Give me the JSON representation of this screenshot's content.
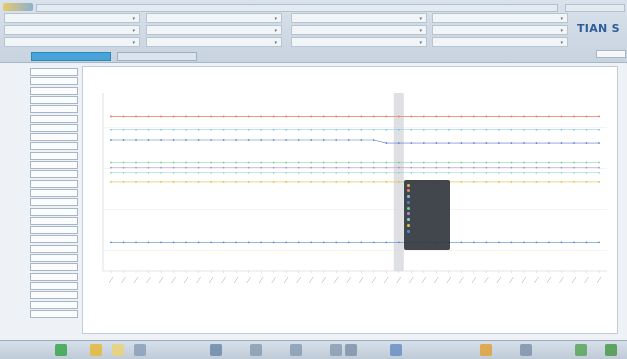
{
  "brand": "TIAN S",
  "tabs": [
    {
      "label": "",
      "active": true
    },
    {
      "label": "",
      "active": false
    }
  ],
  "top_groups": [
    {
      "cells": [
        "",
        "",
        ""
      ]
    },
    {
      "cells": [
        "",
        "",
        ""
      ]
    },
    {
      "cells": [
        "",
        "",
        ""
      ]
    },
    {
      "cells": [
        "",
        "",
        ""
      ]
    }
  ],
  "sidebar": {
    "items": [
      "",
      "",
      "",
      "",
      "",
      "",
      "",
      "",
      "",
      "",
      "",
      "",
      "",
      "",
      "",
      "",
      "",
      "",
      "",
      "",
      "",
      "",
      "",
      "",
      "",
      "",
      ""
    ]
  },
  "panel_title": "",
  "bottom": {
    "title": "",
    "info_left": "",
    "info_right": ""
  },
  "chart_data": {
    "type": "line",
    "title": "",
    "xlabel": "",
    "ylabel": "",
    "x_count": 40,
    "highlight_index": 23,
    "series": [
      {
        "color": "#e8b84a",
        "values": [
          5.55,
          5.55,
          5.55,
          5.55,
          5.55,
          5.55,
          5.55,
          5.55,
          5.55,
          5.55,
          5.55,
          5.55,
          5.55,
          5.55,
          5.55,
          5.55,
          5.55,
          5.55,
          5.55,
          5.55,
          5.55,
          5.55,
          5.55,
          5.55,
          5.55,
          5.55,
          5.55,
          5.55,
          5.55,
          5.55,
          5.55,
          5.55,
          5.55,
          5.55,
          5.55,
          5.55,
          5.55,
          5.55,
          5.55,
          5.55
        ]
      },
      {
        "color": "#f07b7b",
        "values": [
          5.55,
          5.55,
          5.55,
          5.55,
          5.55,
          5.55,
          5.55,
          5.55,
          5.55,
          5.55,
          5.55,
          5.55,
          5.55,
          5.55,
          5.55,
          5.55,
          5.55,
          5.55,
          5.55,
          5.55,
          5.55,
          5.55,
          5.55,
          5.55,
          5.55,
          5.55,
          5.55,
          5.55,
          5.55,
          5.55,
          5.55,
          5.55,
          5.55,
          5.55,
          5.55,
          5.55,
          5.55,
          5.55,
          5.55,
          5.55
        ]
      },
      {
        "color": "#7ac3e6",
        "values": [
          4.9,
          4.9,
          4.9,
          4.9,
          4.9,
          4.9,
          4.9,
          4.9,
          4.9,
          4.9,
          4.9,
          4.9,
          4.9,
          4.9,
          4.9,
          4.9,
          4.9,
          4.9,
          4.9,
          4.9,
          4.9,
          4.9,
          4.9,
          4.9,
          4.9,
          4.9,
          4.9,
          4.9,
          4.9,
          4.9,
          4.9,
          4.9,
          4.9,
          4.9,
          4.9,
          4.9,
          4.9,
          4.9,
          4.9,
          4.9
        ]
      },
      {
        "color": "#5a79c9",
        "values": [
          4.4,
          4.4,
          4.4,
          4.4,
          4.4,
          4.4,
          4.4,
          4.4,
          4.4,
          4.4,
          4.4,
          4.4,
          4.4,
          4.4,
          4.4,
          4.4,
          4.4,
          4.4,
          4.4,
          4.4,
          4.4,
          4.4,
          4.25,
          4.25,
          4.25,
          4.25,
          4.25,
          4.25,
          4.25,
          4.25,
          4.25,
          4.25,
          4.25,
          4.25,
          4.25,
          4.25,
          4.25,
          4.25,
          4.25,
          4.25
        ]
      },
      {
        "color": "#6fcf8f",
        "values": [
          3.3,
          3.3,
          3.3,
          3.3,
          3.3,
          3.3,
          3.3,
          3.3,
          3.3,
          3.3,
          3.3,
          3.3,
          3.3,
          3.3,
          3.3,
          3.3,
          3.3,
          3.3,
          3.3,
          3.3,
          3.3,
          3.3,
          3.3,
          3.3,
          3.3,
          3.3,
          3.3,
          3.3,
          3.3,
          3.3,
          3.3,
          3.3,
          3.3,
          3.3,
          3.3,
          3.3,
          3.3,
          3.3,
          3.3,
          3.3
        ]
      },
      {
        "color": "#b08ad6",
        "values": [
          3.05,
          3.05,
          3.05,
          3.05,
          3.05,
          3.05,
          3.05,
          3.05,
          3.05,
          3.05,
          3.05,
          3.05,
          3.05,
          3.05,
          3.05,
          3.05,
          3.05,
          3.05,
          3.05,
          3.05,
          3.05,
          3.05,
          3.05,
          3.05,
          3.05,
          3.05,
          3.05,
          3.05,
          3.05,
          3.05,
          3.05,
          3.05,
          3.05,
          3.05,
          3.05,
          3.05,
          3.05,
          3.05,
          3.05,
          3.05
        ]
      },
      {
        "color": "#8fd1c8",
        "values": [
          2.8,
          2.8,
          2.8,
          2.8,
          2.8,
          2.8,
          2.8,
          2.8,
          2.8,
          2.8,
          2.8,
          2.8,
          2.8,
          2.8,
          2.8,
          2.8,
          2.8,
          2.8,
          2.8,
          2.8,
          2.8,
          2.8,
          2.8,
          2.8,
          2.8,
          2.8,
          2.8,
          2.8,
          2.8,
          2.8,
          2.8,
          2.8,
          2.8,
          2.8,
          2.8,
          2.8,
          2.8,
          2.8,
          2.8,
          2.8
        ]
      },
      {
        "color": "#d9c24a",
        "values": [
          2.35,
          2.35,
          2.35,
          2.35,
          2.35,
          2.35,
          2.35,
          2.35,
          2.35,
          2.35,
          2.35,
          2.35,
          2.35,
          2.35,
          2.35,
          2.35,
          2.35,
          2.35,
          2.35,
          2.35,
          2.35,
          2.35,
          2.35,
          2.35,
          2.35,
          2.35,
          2.35,
          2.35,
          2.35,
          2.35,
          2.35,
          2.35,
          2.35,
          2.35,
          2.35,
          2.35,
          2.35,
          2.35,
          2.35,
          2.35
        ]
      },
      {
        "color": "#4e8fd0",
        "values": [
          -0.6,
          -0.6,
          -0.6,
          -0.6,
          -0.6,
          -0.6,
          -0.6,
          -0.6,
          -0.6,
          -0.6,
          -0.6,
          -0.6,
          -0.6,
          -0.6,
          -0.6,
          -0.6,
          -0.6,
          -0.6,
          -0.6,
          -0.6,
          -0.6,
          -0.6,
          -0.6,
          -0.6,
          -0.6,
          -0.6,
          -0.6,
          -0.6,
          -0.6,
          -0.6,
          -0.6,
          -0.6,
          -0.6,
          -0.6,
          -0.6,
          -0.6,
          -0.6,
          -0.6,
          -0.6,
          -0.6
        ]
      }
    ],
    "ylim": [
      -2,
      6.5
    ],
    "grid": "horizontal"
  },
  "tooltip": {
    "time": "",
    "rows": [
      {
        "color": "#e8b84a",
        "text": ""
      },
      {
        "color": "#f07b7b",
        "text": ""
      },
      {
        "color": "#7ac3e6",
        "text": ""
      },
      {
        "color": "#5a79c9",
        "text": ""
      },
      {
        "color": "#6fcf8f",
        "text": ""
      },
      {
        "color": "#b08ad6",
        "text": ""
      },
      {
        "color": "#8fd1c8",
        "text": ""
      },
      {
        "color": "#d9c24a",
        "text": ""
      },
      {
        "color": "#4e8fd0",
        "text": ""
      }
    ]
  },
  "taskbar": {
    "icons": [
      "play-icon",
      "folder-icon",
      "document-icon",
      "file-icon",
      "tool-icon",
      "chart-icon",
      "screen-icon",
      "network-icon",
      "settings-icon",
      "help-icon",
      "alert-icon",
      "tools-icon",
      "signal-icon",
      "close-icon"
    ]
  }
}
